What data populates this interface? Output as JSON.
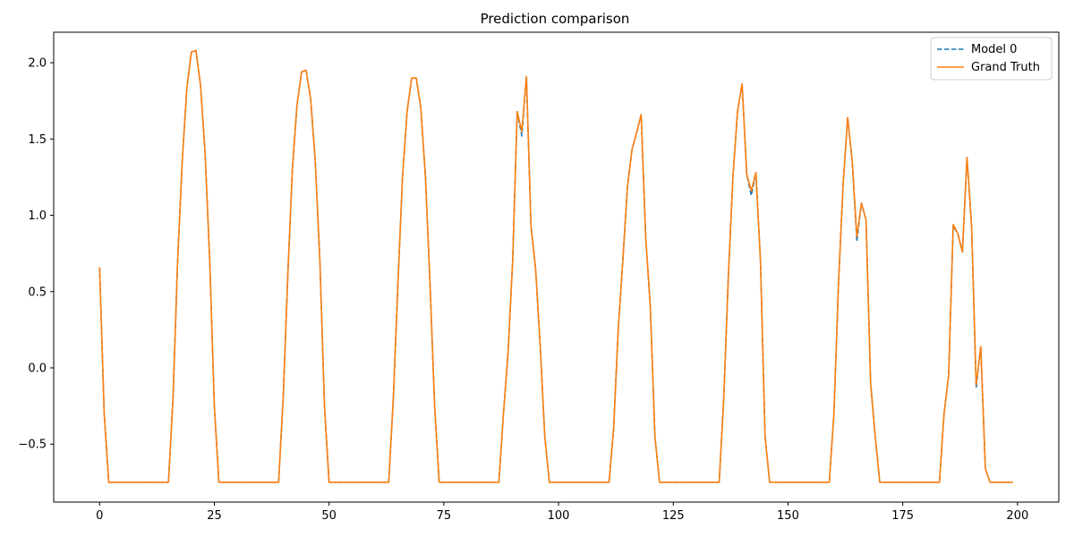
{
  "chart_data": {
    "type": "line",
    "title": "Prediction comparison",
    "xlabel": "",
    "ylabel": "",
    "xlim": [
      -10,
      209
    ],
    "ylim": [
      -0.88,
      2.2
    ],
    "x_ticks": [
      0,
      25,
      50,
      75,
      100,
      125,
      150,
      175,
      200
    ],
    "y_ticks": [
      -0.5,
      0.0,
      0.5,
      1.0,
      1.5,
      2.0
    ],
    "x_tick_labels": [
      "0",
      "25",
      "50",
      "75",
      "100",
      "125",
      "150",
      "175",
      "200"
    ],
    "y_tick_labels": [
      "−0.5",
      "0.0",
      "0.5",
      "1.0",
      "1.5",
      "2.0"
    ],
    "grid": false,
    "legend_position": "top-right",
    "series": [
      {
        "name": "Model 0",
        "color": "#1f77b4",
        "style": "dashed",
        "points": [
          [
            0,
            0.66
          ],
          [
            1,
            -0.3
          ],
          [
            2,
            -0.75
          ],
          [
            15,
            -0.75
          ],
          [
            16,
            -0.2
          ],
          [
            17,
            0.7
          ],
          [
            18,
            1.35
          ],
          [
            19,
            1.83
          ],
          [
            20,
            2.07
          ],
          [
            21,
            2.08
          ],
          [
            22,
            1.85
          ],
          [
            23,
            1.4
          ],
          [
            24,
            0.7
          ],
          [
            25,
            -0.25
          ],
          [
            26,
            -0.75
          ],
          [
            39,
            -0.75
          ],
          [
            40,
            -0.2
          ],
          [
            41,
            0.6
          ],
          [
            42,
            1.3
          ],
          [
            43,
            1.72
          ],
          [
            44,
            1.94
          ],
          [
            45,
            1.95
          ],
          [
            46,
            1.76
          ],
          [
            47,
            1.35
          ],
          [
            48,
            0.7
          ],
          [
            49,
            -0.25
          ],
          [
            50,
            -0.75
          ],
          [
            63,
            -0.75
          ],
          [
            64,
            -0.2
          ],
          [
            65,
            0.55
          ],
          [
            66,
            1.25
          ],
          [
            67,
            1.68
          ],
          [
            68,
            1.9
          ],
          [
            69,
            1.9
          ],
          [
            70,
            1.7
          ],
          [
            71,
            1.25
          ],
          [
            72,
            0.55
          ],
          [
            73,
            -0.25
          ],
          [
            74,
            -0.75
          ],
          [
            87,
            -0.75
          ],
          [
            88,
            -0.3
          ],
          [
            89,
            0.1
          ],
          [
            90,
            0.7
          ],
          [
            91,
            1.68
          ],
          [
            92,
            1.52
          ],
          [
            93,
            1.91
          ],
          [
            94,
            0.93
          ],
          [
            95,
            0.65
          ],
          [
            96,
            0.15
          ],
          [
            97,
            -0.45
          ],
          [
            98,
            -0.75
          ],
          [
            111,
            -0.75
          ],
          [
            112,
            -0.4
          ],
          [
            113,
            0.25
          ],
          [
            114,
            0.7
          ],
          [
            115,
            1.18
          ],
          [
            116,
            1.43
          ],
          [
            117,
            1.54
          ],
          [
            118,
            1.66
          ],
          [
            119,
            0.85
          ],
          [
            120,
            0.4
          ],
          [
            121,
            -0.45
          ],
          [
            122,
            -0.75
          ],
          [
            135,
            -0.75
          ],
          [
            136,
            -0.2
          ],
          [
            137,
            0.6
          ],
          [
            138,
            1.25
          ],
          [
            139,
            1.68
          ],
          [
            140,
            1.86
          ],
          [
            141,
            1.27
          ],
          [
            142,
            1.13
          ],
          [
            143,
            1.28
          ],
          [
            144,
            0.7
          ],
          [
            145,
            -0.45
          ],
          [
            146,
            -0.75
          ],
          [
            159,
            -0.75
          ],
          [
            160,
            -0.3
          ],
          [
            161,
            0.55
          ],
          [
            162,
            1.2
          ],
          [
            163,
            1.64
          ],
          [
            164,
            1.35
          ],
          [
            165,
            0.83
          ],
          [
            166,
            1.08
          ],
          [
            167,
            0.97
          ],
          [
            168,
            -0.1
          ],
          [
            169,
            -0.45
          ],
          [
            170,
            -0.75
          ],
          [
            183,
            -0.75
          ],
          [
            184,
            -0.3
          ],
          [
            185,
            -0.05
          ],
          [
            186,
            0.93
          ],
          [
            187,
            0.88
          ],
          [
            188,
            0.76
          ],
          [
            189,
            1.38
          ],
          [
            190,
            0.93
          ],
          [
            191,
            -0.13
          ],
          [
            192,
            0.14
          ],
          [
            193,
            -0.66
          ],
          [
            194,
            -0.75
          ],
          [
            199,
            -0.75
          ]
        ]
      },
      {
        "name": "Grand Truth",
        "color": "#ff7f0e",
        "style": "solid",
        "points": [
          [
            0,
            0.66
          ],
          [
            1,
            -0.3
          ],
          [
            2,
            -0.75
          ],
          [
            15,
            -0.75
          ],
          [
            16,
            -0.2
          ],
          [
            17,
            0.7
          ],
          [
            18,
            1.35
          ],
          [
            19,
            1.83
          ],
          [
            20,
            2.07
          ],
          [
            21,
            2.08
          ],
          [
            22,
            1.85
          ],
          [
            23,
            1.4
          ],
          [
            24,
            0.7
          ],
          [
            25,
            -0.25
          ],
          [
            26,
            -0.75
          ],
          [
            39,
            -0.75
          ],
          [
            40,
            -0.2
          ],
          [
            41,
            0.6
          ],
          [
            42,
            1.3
          ],
          [
            43,
            1.72
          ],
          [
            44,
            1.94
          ],
          [
            45,
            1.95
          ],
          [
            46,
            1.76
          ],
          [
            47,
            1.35
          ],
          [
            48,
            0.7
          ],
          [
            49,
            -0.25
          ],
          [
            50,
            -0.75
          ],
          [
            63,
            -0.75
          ],
          [
            64,
            -0.2
          ],
          [
            65,
            0.55
          ],
          [
            66,
            1.25
          ],
          [
            67,
            1.68
          ],
          [
            68,
            1.9
          ],
          [
            69,
            1.9
          ],
          [
            70,
            1.7
          ],
          [
            71,
            1.25
          ],
          [
            72,
            0.55
          ],
          [
            73,
            -0.25
          ],
          [
            74,
            -0.75
          ],
          [
            87,
            -0.75
          ],
          [
            88,
            -0.3
          ],
          [
            89,
            0.1
          ],
          [
            90,
            0.7
          ],
          [
            91,
            1.68
          ],
          [
            92,
            1.55
          ],
          [
            93,
            1.91
          ],
          [
            94,
            0.93
          ],
          [
            95,
            0.65
          ],
          [
            96,
            0.15
          ],
          [
            97,
            -0.45
          ],
          [
            98,
            -0.75
          ],
          [
            111,
            -0.75
          ],
          [
            112,
            -0.4
          ],
          [
            113,
            0.25
          ],
          [
            114,
            0.7
          ],
          [
            115,
            1.18
          ],
          [
            116,
            1.43
          ],
          [
            117,
            1.54
          ],
          [
            118,
            1.66
          ],
          [
            119,
            0.85
          ],
          [
            120,
            0.4
          ],
          [
            121,
            -0.45
          ],
          [
            122,
            -0.75
          ],
          [
            135,
            -0.75
          ],
          [
            136,
            -0.2
          ],
          [
            137,
            0.6
          ],
          [
            138,
            1.25
          ],
          [
            139,
            1.68
          ],
          [
            140,
            1.86
          ],
          [
            141,
            1.27
          ],
          [
            142,
            1.16
          ],
          [
            143,
            1.28
          ],
          [
            144,
            0.7
          ],
          [
            145,
            -0.45
          ],
          [
            146,
            -0.75
          ],
          [
            159,
            -0.75
          ],
          [
            160,
            -0.3
          ],
          [
            161,
            0.55
          ],
          [
            162,
            1.2
          ],
          [
            163,
            1.64
          ],
          [
            164,
            1.35
          ],
          [
            165,
            0.86
          ],
          [
            166,
            1.08
          ],
          [
            167,
            0.97
          ],
          [
            168,
            -0.1
          ],
          [
            169,
            -0.45
          ],
          [
            170,
            -0.75
          ],
          [
            183,
            -0.75
          ],
          [
            184,
            -0.3
          ],
          [
            185,
            -0.05
          ],
          [
            186,
            0.94
          ],
          [
            187,
            0.88
          ],
          [
            188,
            0.76
          ],
          [
            189,
            1.38
          ],
          [
            190,
            0.93
          ],
          [
            191,
            -0.11
          ],
          [
            192,
            0.14
          ],
          [
            193,
            -0.66
          ],
          [
            194,
            -0.75
          ],
          [
            199,
            -0.75
          ]
        ]
      }
    ]
  }
}
